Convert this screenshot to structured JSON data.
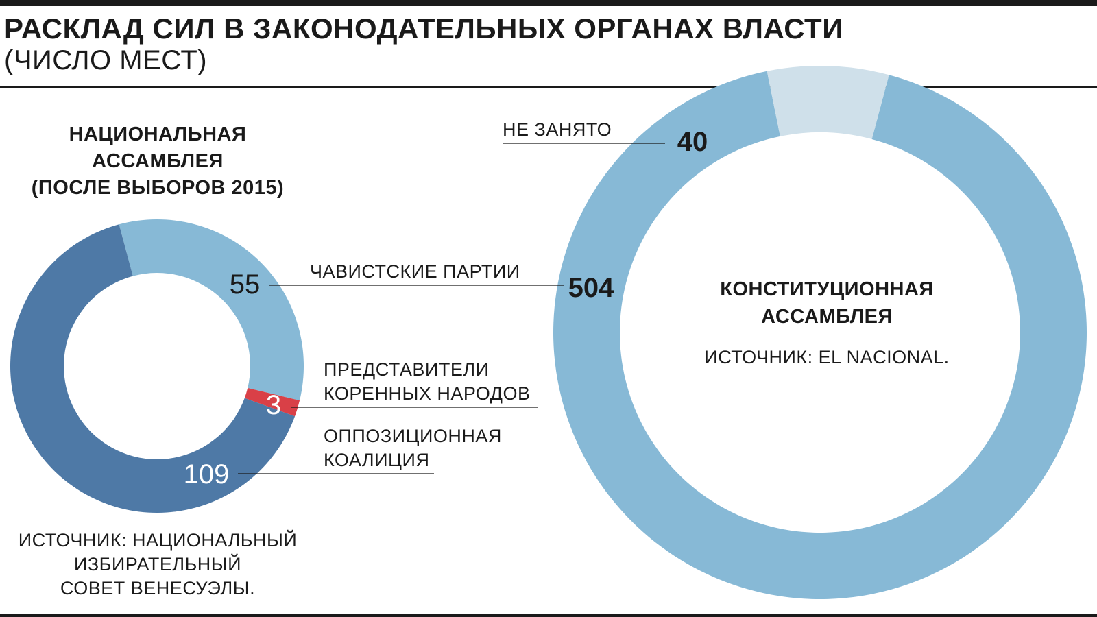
{
  "header": {
    "title": "РАСКЛАД СИЛ В ЗАКОНОДАТЕЛЬНЫХ ОРГАНАХ ВЛАСТИ",
    "subtitle": "(ЧИСЛО МЕСТ)"
  },
  "left_chart": {
    "heading_line1": "НАЦИОНАЛЬНАЯ",
    "heading_line2": "АССАМБЛЕЯ",
    "heading_line3": "(ПОСЛЕ ВЫБОРОВ 2015)",
    "source_line1": "ИСТОЧНИК: НАЦИОНАЛЬНЫЙ",
    "source_line2": "ИЗБИРАТЕЛЬНЫЙ",
    "source_line3": "СОВЕТ ВЕНЕСУЭЛЫ."
  },
  "right_chart": {
    "heading_line1": "КОНСТИТУЦИОННАЯ",
    "heading_line2": "АССАМБЛЕЯ",
    "source": "ИСТОЧНИК: EL NACIONAL."
  },
  "labels": {
    "chavist": "ЧАВИСТСКИЕ ПАРТИИ",
    "indigenous_line1": "ПРЕДСТАВИТЕЛИ",
    "indigenous_line2": "КОРЕННЫХ НАРОДОВ",
    "opposition_line1": "ОППОЗИЦИОННАЯ",
    "opposition_line2": "КОАЛИЦИЯ",
    "vacant": "НЕ ЗАНЯТО"
  },
  "colors": {
    "chavist": "#87b9d6",
    "indigenous": "#d94047",
    "opposition": "#4e79a6",
    "vacant": "#cfe0ea"
  },
  "chart_data": [
    {
      "type": "pie",
      "title": "НАЦИОНАЛЬНАЯ АССАМБЛЕЯ (ПОСЛЕ ВЫБОРОВ 2015)",
      "categories": [
        "ЧАВИСТСКИЕ ПАРТИИ",
        "ПРЕДСТАВИТЕЛИ КОРЕННЫХ НАРОДОВ",
        "ОППОЗИЦИОННАЯ КОАЛИЦИЯ"
      ],
      "values": [
        55,
        3,
        109
      ],
      "data_labels": [
        "55",
        "3",
        "109"
      ]
    },
    {
      "type": "pie",
      "title": "КОНСТИТУЦИОННАЯ АССАМБЛЕЯ",
      "categories": [
        "ЧАВИСТСКИЕ ПАРТИИ",
        "НЕ ЗАНЯТО"
      ],
      "values": [
        504,
        40
      ],
      "data_labels": [
        "504",
        "40"
      ]
    }
  ]
}
